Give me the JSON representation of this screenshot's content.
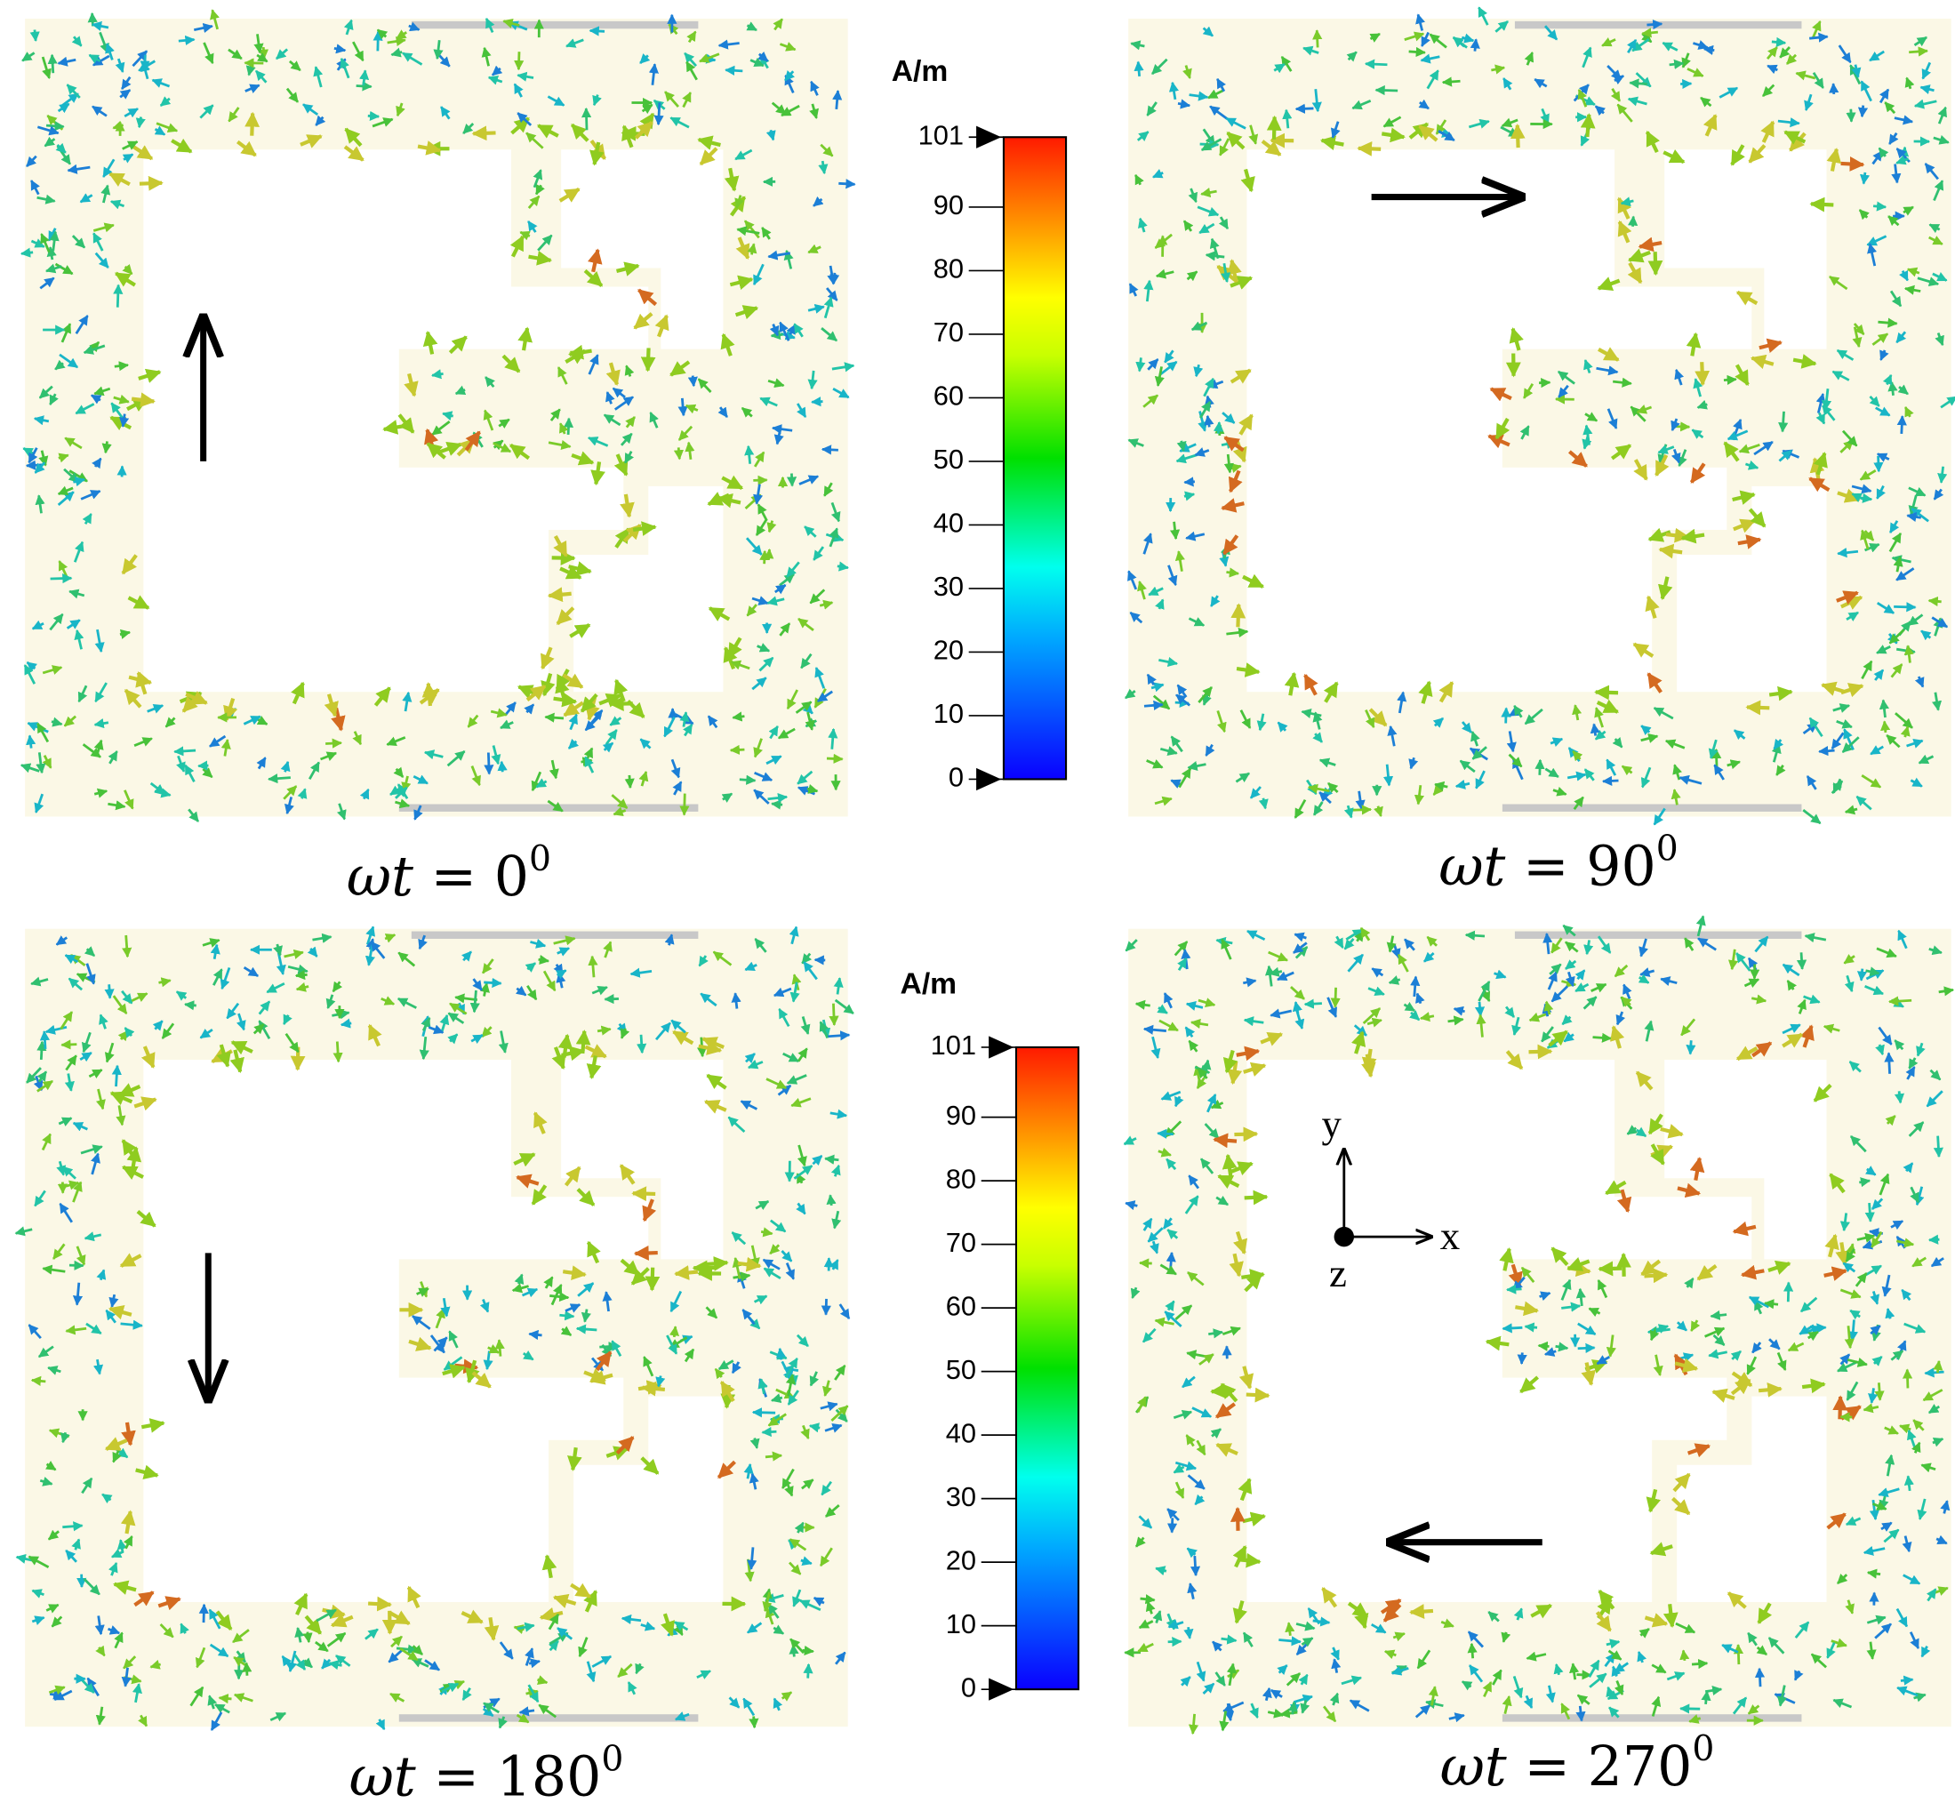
{
  "panels": [
    {
      "caption": {
        "var": "ωt",
        "eq": "= 0",
        "sup": "0"
      }
    },
    {
      "caption": {
        "var": "ωt",
        "eq": "= 90",
        "sup": "0"
      }
    },
    {
      "caption": {
        "var": "ωt",
        "eq": "= 180",
        "sup": "0"
      }
    },
    {
      "caption": {
        "var": "ωt",
        "eq": "= 270",
        "sup": "0"
      },
      "axes": {
        "y": "y",
        "x": "x",
        "z": "z"
      }
    }
  ],
  "colorbars": [
    {
      "unit": "A/m",
      "ticks": [
        101,
        90,
        80,
        70,
        60,
        50,
        40,
        30,
        20,
        10,
        0
      ]
    },
    {
      "unit": "A/m",
      "ticks": [
        101,
        90,
        80,
        70,
        60,
        50,
        40,
        30,
        20,
        10,
        0
      ]
    }
  ]
}
